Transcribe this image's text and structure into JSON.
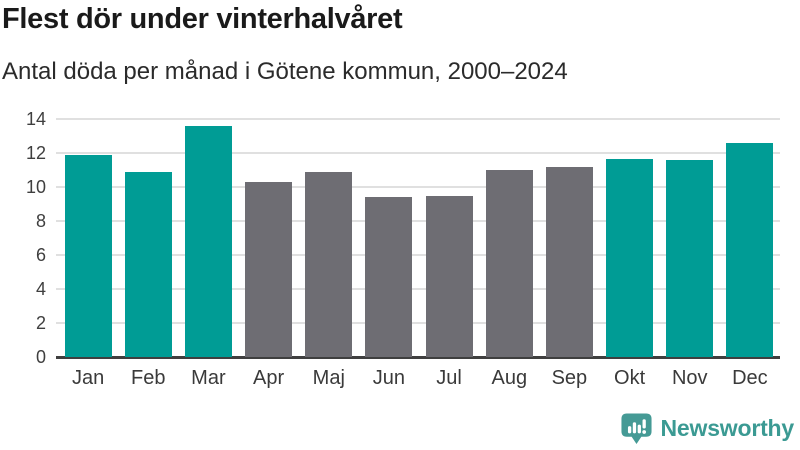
{
  "header": {
    "title": "Flest dör under vinterhalvåret",
    "subtitle": "Antal döda per månad i Götene kommun, 2000–2024"
  },
  "chart_data": {
    "type": "bar",
    "title": "Flest dör under vinterhalvåret",
    "subtitle": "Antal döda per månad i Götene kommun, 2000–2024",
    "categories": [
      "Jan",
      "Feb",
      "Mar",
      "Apr",
      "Maj",
      "Jun",
      "Jul",
      "Aug",
      "Sep",
      "Okt",
      "Nov",
      "Dec"
    ],
    "values": [
      11.9,
      10.9,
      13.6,
      10.3,
      10.9,
      9.4,
      9.5,
      11.0,
      11.2,
      11.65,
      11.6,
      12.6
    ],
    "bar_color_keys": [
      "highlight",
      "highlight",
      "highlight",
      "base",
      "base",
      "base",
      "base",
      "base",
      "base",
      "highlight",
      "highlight",
      "highlight"
    ],
    "colors": {
      "highlight": "#009c95",
      "base": "#6e6d73"
    },
    "xlabel": "",
    "ylabel": "",
    "ylim": [
      0,
      14
    ],
    "yticks": [
      0,
      2,
      4,
      6,
      8,
      10,
      12,
      14
    ],
    "grid": true,
    "legend": "none"
  },
  "footer": {
    "brand": "Newsworthy",
    "brand_text_color": "#3b9a93",
    "logo_icon": "bar-chart-speech-bubble-icon",
    "logo_icon_color": "#459a95"
  }
}
